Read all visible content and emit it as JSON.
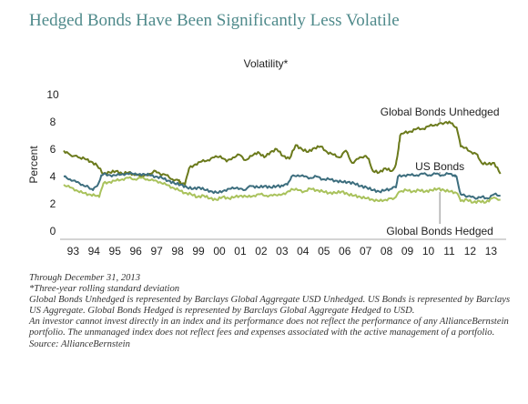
{
  "chart_data": {
    "type": "line",
    "title": "Hedged Bonds Have Been Significantly Less Volatile",
    "subtitle": "Volatility*",
    "ylabel": "Percent",
    "xlabel": "",
    "ylim": [
      0,
      10
    ],
    "yticks": [
      "0",
      "2",
      "4",
      "6",
      "8",
      "10"
    ],
    "xticks": [
      "93",
      "94",
      "95",
      "96",
      "97",
      "98",
      "99",
      "00",
      "01",
      "02",
      "03",
      "04",
      "05",
      "06",
      "07",
      "08",
      "09",
      "10",
      "11",
      "12",
      "13"
    ],
    "xlim": [
      1993.0,
      2014.0
    ],
    "grid": false,
    "series": [
      {
        "name": "Global Bonds Unhedged",
        "color": "#6b7a1c",
        "points": [
          [
            1993.0,
            5.9
          ],
          [
            1993.3,
            5.6
          ],
          [
            1993.7,
            5.4
          ],
          [
            1994.0,
            5.3
          ],
          [
            1994.3,
            5.1
          ],
          [
            1994.6,
            4.8
          ],
          [
            1994.9,
            4.2
          ],
          [
            1995.2,
            4.3
          ],
          [
            1995.5,
            4.4
          ],
          [
            1995.8,
            4.2
          ],
          [
            1996.1,
            4.3
          ],
          [
            1996.4,
            4.1
          ],
          [
            1996.8,
            4.0
          ],
          [
            1997.1,
            4.2
          ],
          [
            1997.4,
            4.4
          ],
          [
            1997.6,
            4.2
          ],
          [
            1997.9,
            4.1
          ],
          [
            1998.2,
            3.8
          ],
          [
            1998.5,
            3.7
          ],
          [
            1998.6,
            3.5
          ],
          [
            1998.8,
            3.4
          ],
          [
            1999.0,
            4.6
          ],
          [
            1999.3,
            4.9
          ],
          [
            1999.6,
            5.1
          ],
          [
            1999.9,
            5.2
          ],
          [
            2000.2,
            5.4
          ],
          [
            2000.5,
            5.5
          ],
          [
            2000.8,
            5.1
          ],
          [
            2001.1,
            5.4
          ],
          [
            2001.4,
            5.6
          ],
          [
            2001.7,
            5.2
          ],
          [
            2002.0,
            5.5
          ],
          [
            2002.3,
            5.8
          ],
          [
            2002.6,
            5.4
          ],
          [
            2002.9,
            5.8
          ],
          [
            2003.2,
            6.0
          ],
          [
            2003.5,
            5.5
          ],
          [
            2003.8,
            5.3
          ],
          [
            2004.1,
            6.3
          ],
          [
            2004.4,
            6.0
          ],
          [
            2004.7,
            5.8
          ],
          [
            2005.0,
            6.1
          ],
          [
            2005.3,
            6.2
          ],
          [
            2005.6,
            5.8
          ],
          [
            2005.9,
            5.6
          ],
          [
            2006.2,
            5.4
          ],
          [
            2006.5,
            5.9
          ],
          [
            2006.8,
            5.0
          ],
          [
            2007.1,
            5.3
          ],
          [
            2007.4,
            5.5
          ],
          [
            2007.6,
            5.3
          ],
          [
            2007.8,
            4.4
          ],
          [
            2008.1,
            4.3
          ],
          [
            2008.4,
            4.6
          ],
          [
            2008.7,
            4.4
          ],
          [
            2008.9,
            4.9
          ],
          [
            2009.0,
            5.8
          ],
          [
            2009.1,
            7.0
          ],
          [
            2009.3,
            7.2
          ],
          [
            2009.6,
            7.3
          ],
          [
            2009.9,
            7.5
          ],
          [
            2010.2,
            7.5
          ],
          [
            2010.5,
            7.7
          ],
          [
            2010.8,
            7.8
          ],
          [
            2011.1,
            7.9
          ],
          [
            2011.3,
            8.0
          ],
          [
            2011.6,
            7.9
          ],
          [
            2011.8,
            7.6
          ],
          [
            2012.0,
            6.2
          ],
          [
            2012.2,
            6.1
          ],
          [
            2012.5,
            5.8
          ],
          [
            2012.8,
            5.6
          ],
          [
            2013.0,
            5.0
          ],
          [
            2013.3,
            4.9
          ],
          [
            2013.6,
            5.0
          ],
          [
            2013.9,
            4.2
          ]
        ]
      },
      {
        "name": "US Bonds",
        "color": "#3d6e7e",
        "points": [
          [
            1993.0,
            4.0
          ],
          [
            1993.3,
            3.8
          ],
          [
            1993.6,
            3.6
          ],
          [
            1993.9,
            3.4
          ],
          [
            1994.2,
            3.2
          ],
          [
            1994.4,
            3.0
          ],
          [
            1994.6,
            3.3
          ],
          [
            1994.8,
            4.1
          ],
          [
            1995.0,
            4.2
          ],
          [
            1995.3,
            4.0
          ],
          [
            1995.6,
            4.2
          ],
          [
            1995.9,
            4.1
          ],
          [
            1996.2,
            4.3
          ],
          [
            1996.5,
            4.1
          ],
          [
            1996.8,
            4.2
          ],
          [
            1997.1,
            4.1
          ],
          [
            1997.4,
            4.0
          ],
          [
            1997.7,
            3.9
          ],
          [
            1998.0,
            3.7
          ],
          [
            1998.3,
            3.5
          ],
          [
            1998.6,
            3.4
          ],
          [
            1998.9,
            3.2
          ],
          [
            1999.2,
            3.1
          ],
          [
            1999.5,
            3.2
          ],
          [
            1999.8,
            3.0
          ],
          [
            2000.1,
            2.9
          ],
          [
            2000.4,
            2.8
          ],
          [
            2000.7,
            3.0
          ],
          [
            2001.0,
            3.1
          ],
          [
            2001.3,
            3.2
          ],
          [
            2001.6,
            3.0
          ],
          [
            2002.0,
            3.3
          ],
          [
            2002.3,
            3.2
          ],
          [
            2002.6,
            3.3
          ],
          [
            2002.9,
            3.2
          ],
          [
            2003.2,
            3.3
          ],
          [
            2003.5,
            3.3
          ],
          [
            2003.7,
            3.4
          ],
          [
            2003.9,
            4.0
          ],
          [
            2004.2,
            4.1
          ],
          [
            2004.5,
            4.0
          ],
          [
            2004.8,
            3.9
          ],
          [
            2005.1,
            4.0
          ],
          [
            2005.4,
            3.8
          ],
          [
            2005.7,
            3.8
          ],
          [
            2006.0,
            3.7
          ],
          [
            2006.3,
            3.6
          ],
          [
            2006.6,
            3.6
          ],
          [
            2006.9,
            3.5
          ],
          [
            2007.2,
            3.3
          ],
          [
            2007.5,
            3.2
          ],
          [
            2007.8,
            3.0
          ],
          [
            2008.1,
            2.9
          ],
          [
            2008.4,
            3.0
          ],
          [
            2008.7,
            3.1
          ],
          [
            2008.9,
            3.2
          ],
          [
            2009.0,
            4.0
          ],
          [
            2009.3,
            4.1
          ],
          [
            2009.6,
            4.1
          ],
          [
            2009.9,
            4.1
          ],
          [
            2010.2,
            4.2
          ],
          [
            2010.5,
            4.1
          ],
          [
            2010.8,
            4.2
          ],
          [
            2011.1,
            4.1
          ],
          [
            2011.4,
            4.2
          ],
          [
            2011.7,
            4.1
          ],
          [
            2011.8,
            4.0
          ],
          [
            2012.0,
            2.7
          ],
          [
            2012.2,
            2.6
          ],
          [
            2012.5,
            2.5
          ],
          [
            2012.8,
            2.4
          ],
          [
            2013.0,
            2.5
          ],
          [
            2013.3,
            2.4
          ],
          [
            2013.6,
            2.7
          ],
          [
            2013.9,
            2.6
          ]
        ]
      },
      {
        "name": "Global Bonds Hedged",
        "color": "#a9c25c",
        "points": [
          [
            1993.0,
            3.4
          ],
          [
            1993.3,
            3.2
          ],
          [
            1993.6,
            3.0
          ],
          [
            1993.9,
            2.8
          ],
          [
            1994.2,
            2.7
          ],
          [
            1994.5,
            2.6
          ],
          [
            1994.7,
            2.5
          ],
          [
            1994.9,
            3.5
          ],
          [
            1995.2,
            3.6
          ],
          [
            1995.5,
            3.7
          ],
          [
            1995.8,
            3.8
          ],
          [
            1996.1,
            3.9
          ],
          [
            1996.4,
            3.8
          ],
          [
            1996.7,
            3.9
          ],
          [
            1997.0,
            3.8
          ],
          [
            1997.3,
            3.7
          ],
          [
            1997.6,
            3.6
          ],
          [
            1997.9,
            3.4
          ],
          [
            1998.2,
            3.2
          ],
          [
            1998.5,
            3.0
          ],
          [
            1998.8,
            2.8
          ],
          [
            1999.1,
            2.7
          ],
          [
            1999.4,
            2.5
          ],
          [
            1999.7,
            2.6
          ],
          [
            2000.0,
            2.4
          ],
          [
            2000.3,
            2.3
          ],
          [
            2000.6,
            2.5
          ],
          [
            2000.9,
            2.4
          ],
          [
            2001.2,
            2.5
          ],
          [
            2001.5,
            2.6
          ],
          [
            2001.8,
            2.5
          ],
          [
            2002.1,
            2.6
          ],
          [
            2002.4,
            2.7
          ],
          [
            2002.7,
            2.6
          ],
          [
            2003.0,
            2.6
          ],
          [
            2003.3,
            2.7
          ],
          [
            2003.6,
            2.7
          ],
          [
            2003.9,
            3.1
          ],
          [
            2004.2,
            3.0
          ],
          [
            2004.5,
            2.9
          ],
          [
            2004.8,
            3.1
          ],
          [
            2005.1,
            3.0
          ],
          [
            2005.4,
            2.9
          ],
          [
            2005.7,
            2.8
          ],
          [
            2006.0,
            2.8
          ],
          [
            2006.3,
            2.9
          ],
          [
            2006.6,
            2.7
          ],
          [
            2006.9,
            2.6
          ],
          [
            2007.2,
            2.5
          ],
          [
            2007.5,
            2.4
          ],
          [
            2007.8,
            2.3
          ],
          [
            2008.1,
            2.2
          ],
          [
            2008.4,
            2.3
          ],
          [
            2008.7,
            2.4
          ],
          [
            2008.9,
            2.5
          ],
          [
            2009.1,
            2.9
          ],
          [
            2009.4,
            3.0
          ],
          [
            2009.7,
            2.9
          ],
          [
            2010.0,
            3.0
          ],
          [
            2010.3,
            2.9
          ],
          [
            2010.6,
            3.0
          ],
          [
            2010.9,
            3.1
          ],
          [
            2011.2,
            3.0
          ],
          [
            2011.5,
            2.9
          ],
          [
            2011.8,
            2.8
          ],
          [
            2012.0,
            2.2
          ],
          [
            2012.3,
            2.3
          ],
          [
            2012.6,
            2.1
          ],
          [
            2012.9,
            2.2
          ],
          [
            2013.2,
            2.1
          ],
          [
            2013.5,
            2.4
          ],
          [
            2013.9,
            2.3
          ]
        ]
      }
    ],
    "annotations": [
      {
        "text": "Global Bonds Unhedged",
        "series": 0,
        "x": 2011.0
      },
      {
        "text": "US Bonds",
        "series": 1,
        "x": 2011.0
      },
      {
        "text": "Global Bonds Hedged",
        "series": 2,
        "x": 2011.0
      }
    ]
  },
  "notes": [
    "Through December 31, 2013",
    "*Three-year rolling standard deviation",
    "Global Bonds Unhedged  is represented by Barclays Global Aggregate USD Unhedged. US Bonds is represented by Barclays US Aggregate. Global Bonds Hedged is represented by Barclays Global Aggregate Hedged to USD.",
    "An investor cannot invest directly in an index and its performance does not reflect the performance of any AllianceBernstein portfolio. The unmanaged index does not reflect fees and expenses associated with the active management of a portfolio.",
    "Source: AllianceBernstein"
  ]
}
